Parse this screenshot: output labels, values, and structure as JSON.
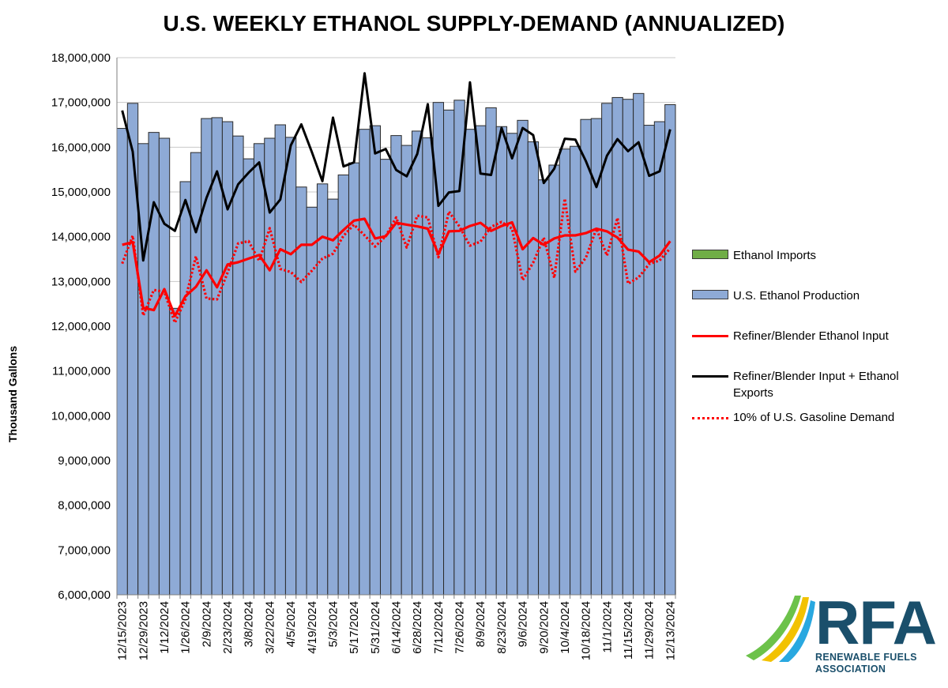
{
  "chart_data": {
    "type": "bar",
    "title": "U.S. WEEKLY ETHANOL SUPPLY-DEMAND (ANNUALIZED)",
    "ylabel": "Thousand Gallons",
    "xlabel": "",
    "ylim": [
      6000000,
      18000000
    ],
    "ytick_step": 1000000,
    "y_ticks": [
      "6,000,000",
      "7,000,000",
      "8,000,000",
      "9,000,000",
      "10,000,000",
      "11,000,000",
      "12,000,000",
      "13,000,000",
      "14,000,000",
      "15,000,000",
      "16,000,000",
      "17,000,000",
      "18,000,000"
    ],
    "x_tick_labels": [
      "12/15/2023",
      "12/29/2023",
      "1/12/2024",
      "1/26/2024",
      "2/9/2024",
      "2/23/2024",
      "3/8/2024",
      "3/22/2024",
      "4/5/2024",
      "4/19/2024",
      "5/3/2024",
      "5/17/2024",
      "5/31/2024",
      "6/14/2024",
      "6/28/2024",
      "7/12/2024",
      "7/26/2024",
      "8/9/2024",
      "8/23/2024",
      "9/6/2024",
      "9/20/2024",
      "10/4/2024",
      "10/18/2024",
      "11/1/2024",
      "11/15/2024",
      "11/29/2024",
      "12/13/2024"
    ],
    "x_tick_every": 2,
    "grid": true,
    "legend_placement": "right",
    "categories_count": 53,
    "series": [
      {
        "name": "Ethanol Imports",
        "type": "bar",
        "color": "#70ad47",
        "values": [
          0,
          0,
          0,
          0,
          0,
          0,
          0,
          0,
          0,
          0,
          0,
          0,
          0,
          0,
          0,
          0,
          0,
          0,
          0,
          0,
          0,
          0,
          0,
          0,
          0,
          0,
          0,
          0,
          0,
          0,
          0,
          0,
          0,
          0,
          0,
          0,
          0,
          0,
          0,
          0,
          0,
          0,
          0,
          0,
          0,
          0,
          0,
          0,
          0,
          0,
          0,
          0,
          0
        ]
      },
      {
        "name": "U.S. Ethanol Production",
        "type": "bar",
        "color": "#8eaad6",
        "values": [
          16420000,
          16980000,
          16080000,
          16330000,
          16200000,
          12400000,
          15230000,
          15880000,
          16640000,
          16660000,
          16570000,
          16250000,
          15740000,
          16080000,
          16200000,
          16500000,
          16220000,
          15110000,
          14660000,
          15180000,
          14840000,
          15380000,
          15650000,
          16400000,
          16480000,
          15730000,
          16260000,
          16040000,
          16360000,
          16210000,
          17000000,
          16830000,
          17050000,
          16400000,
          16480000,
          16880000,
          16460000,
          16310000,
          16600000,
          16120000,
          15270000,
          15600000,
          15960000,
          16020000,
          16620000,
          16640000,
          16980000,
          17110000,
          17070000,
          17200000,
          16490000,
          16570000,
          16950000
        ]
      },
      {
        "name": "Refiner/Blender Ethanol Input",
        "type": "line",
        "style": "solid",
        "color": "#ff0000",
        "values": [
          13820000,
          13880000,
          12410000,
          12360000,
          12830000,
          12230000,
          12670000,
          12880000,
          13250000,
          12870000,
          13380000,
          13430000,
          13510000,
          13590000,
          13250000,
          13720000,
          13610000,
          13820000,
          13820000,
          14000000,
          13920000,
          14150000,
          14360000,
          14400000,
          13960000,
          14010000,
          14310000,
          14270000,
          14230000,
          14180000,
          13610000,
          14120000,
          14130000,
          14240000,
          14310000,
          14130000,
          14240000,
          14320000,
          13720000,
          13970000,
          13820000,
          13960000,
          14030000,
          14030000,
          14080000,
          14180000,
          14120000,
          13980000,
          13710000,
          13670000,
          13430000,
          13580000,
          13900000
        ]
      },
      {
        "name": "Refiner/Blender Input + Ethanol Exports",
        "type": "line",
        "style": "solid",
        "color": "#000000",
        "values": [
          16820000,
          15900000,
          13470000,
          14770000,
          14290000,
          14130000,
          14820000,
          14100000,
          14870000,
          15460000,
          14610000,
          15170000,
          15430000,
          15660000,
          14540000,
          14830000,
          16040000,
          16510000,
          15890000,
          15240000,
          16660000,
          15570000,
          15660000,
          17650000,
          15860000,
          15960000,
          15490000,
          15350000,
          15850000,
          16960000,
          14690000,
          14990000,
          15020000,
          17450000,
          15410000,
          15380000,
          16430000,
          15750000,
          16430000,
          16270000,
          15200000,
          15520000,
          16190000,
          16170000,
          15690000,
          15110000,
          15810000,
          16180000,
          15910000,
          16110000,
          15360000,
          15460000,
          16400000
        ]
      },
      {
        "name": "10% of U.S. Gasoline Demand",
        "type": "line",
        "style": "dotted",
        "color": "#ff0000",
        "values": [
          13400000,
          14020000,
          12240000,
          12810000,
          12770000,
          12080000,
          12600000,
          13560000,
          12620000,
          12600000,
          13200000,
          13850000,
          13900000,
          13460000,
          14190000,
          13280000,
          13210000,
          12990000,
          13240000,
          13510000,
          13620000,
          14020000,
          14270000,
          14030000,
          13780000,
          14010000,
          14430000,
          13760000,
          14470000,
          14430000,
          13540000,
          14560000,
          14230000,
          13800000,
          13890000,
          14220000,
          14330000,
          14180000,
          13030000,
          13420000,
          13980000,
          13080000,
          14850000,
          13220000,
          13530000,
          14180000,
          13580000,
          14420000,
          12950000,
          13090000,
          13390000,
          13470000,
          13740000
        ]
      }
    ]
  },
  "logo": {
    "letters": "RFA",
    "line1": "RENEWABLE FUELS",
    "line2": "ASSOCIATION"
  }
}
